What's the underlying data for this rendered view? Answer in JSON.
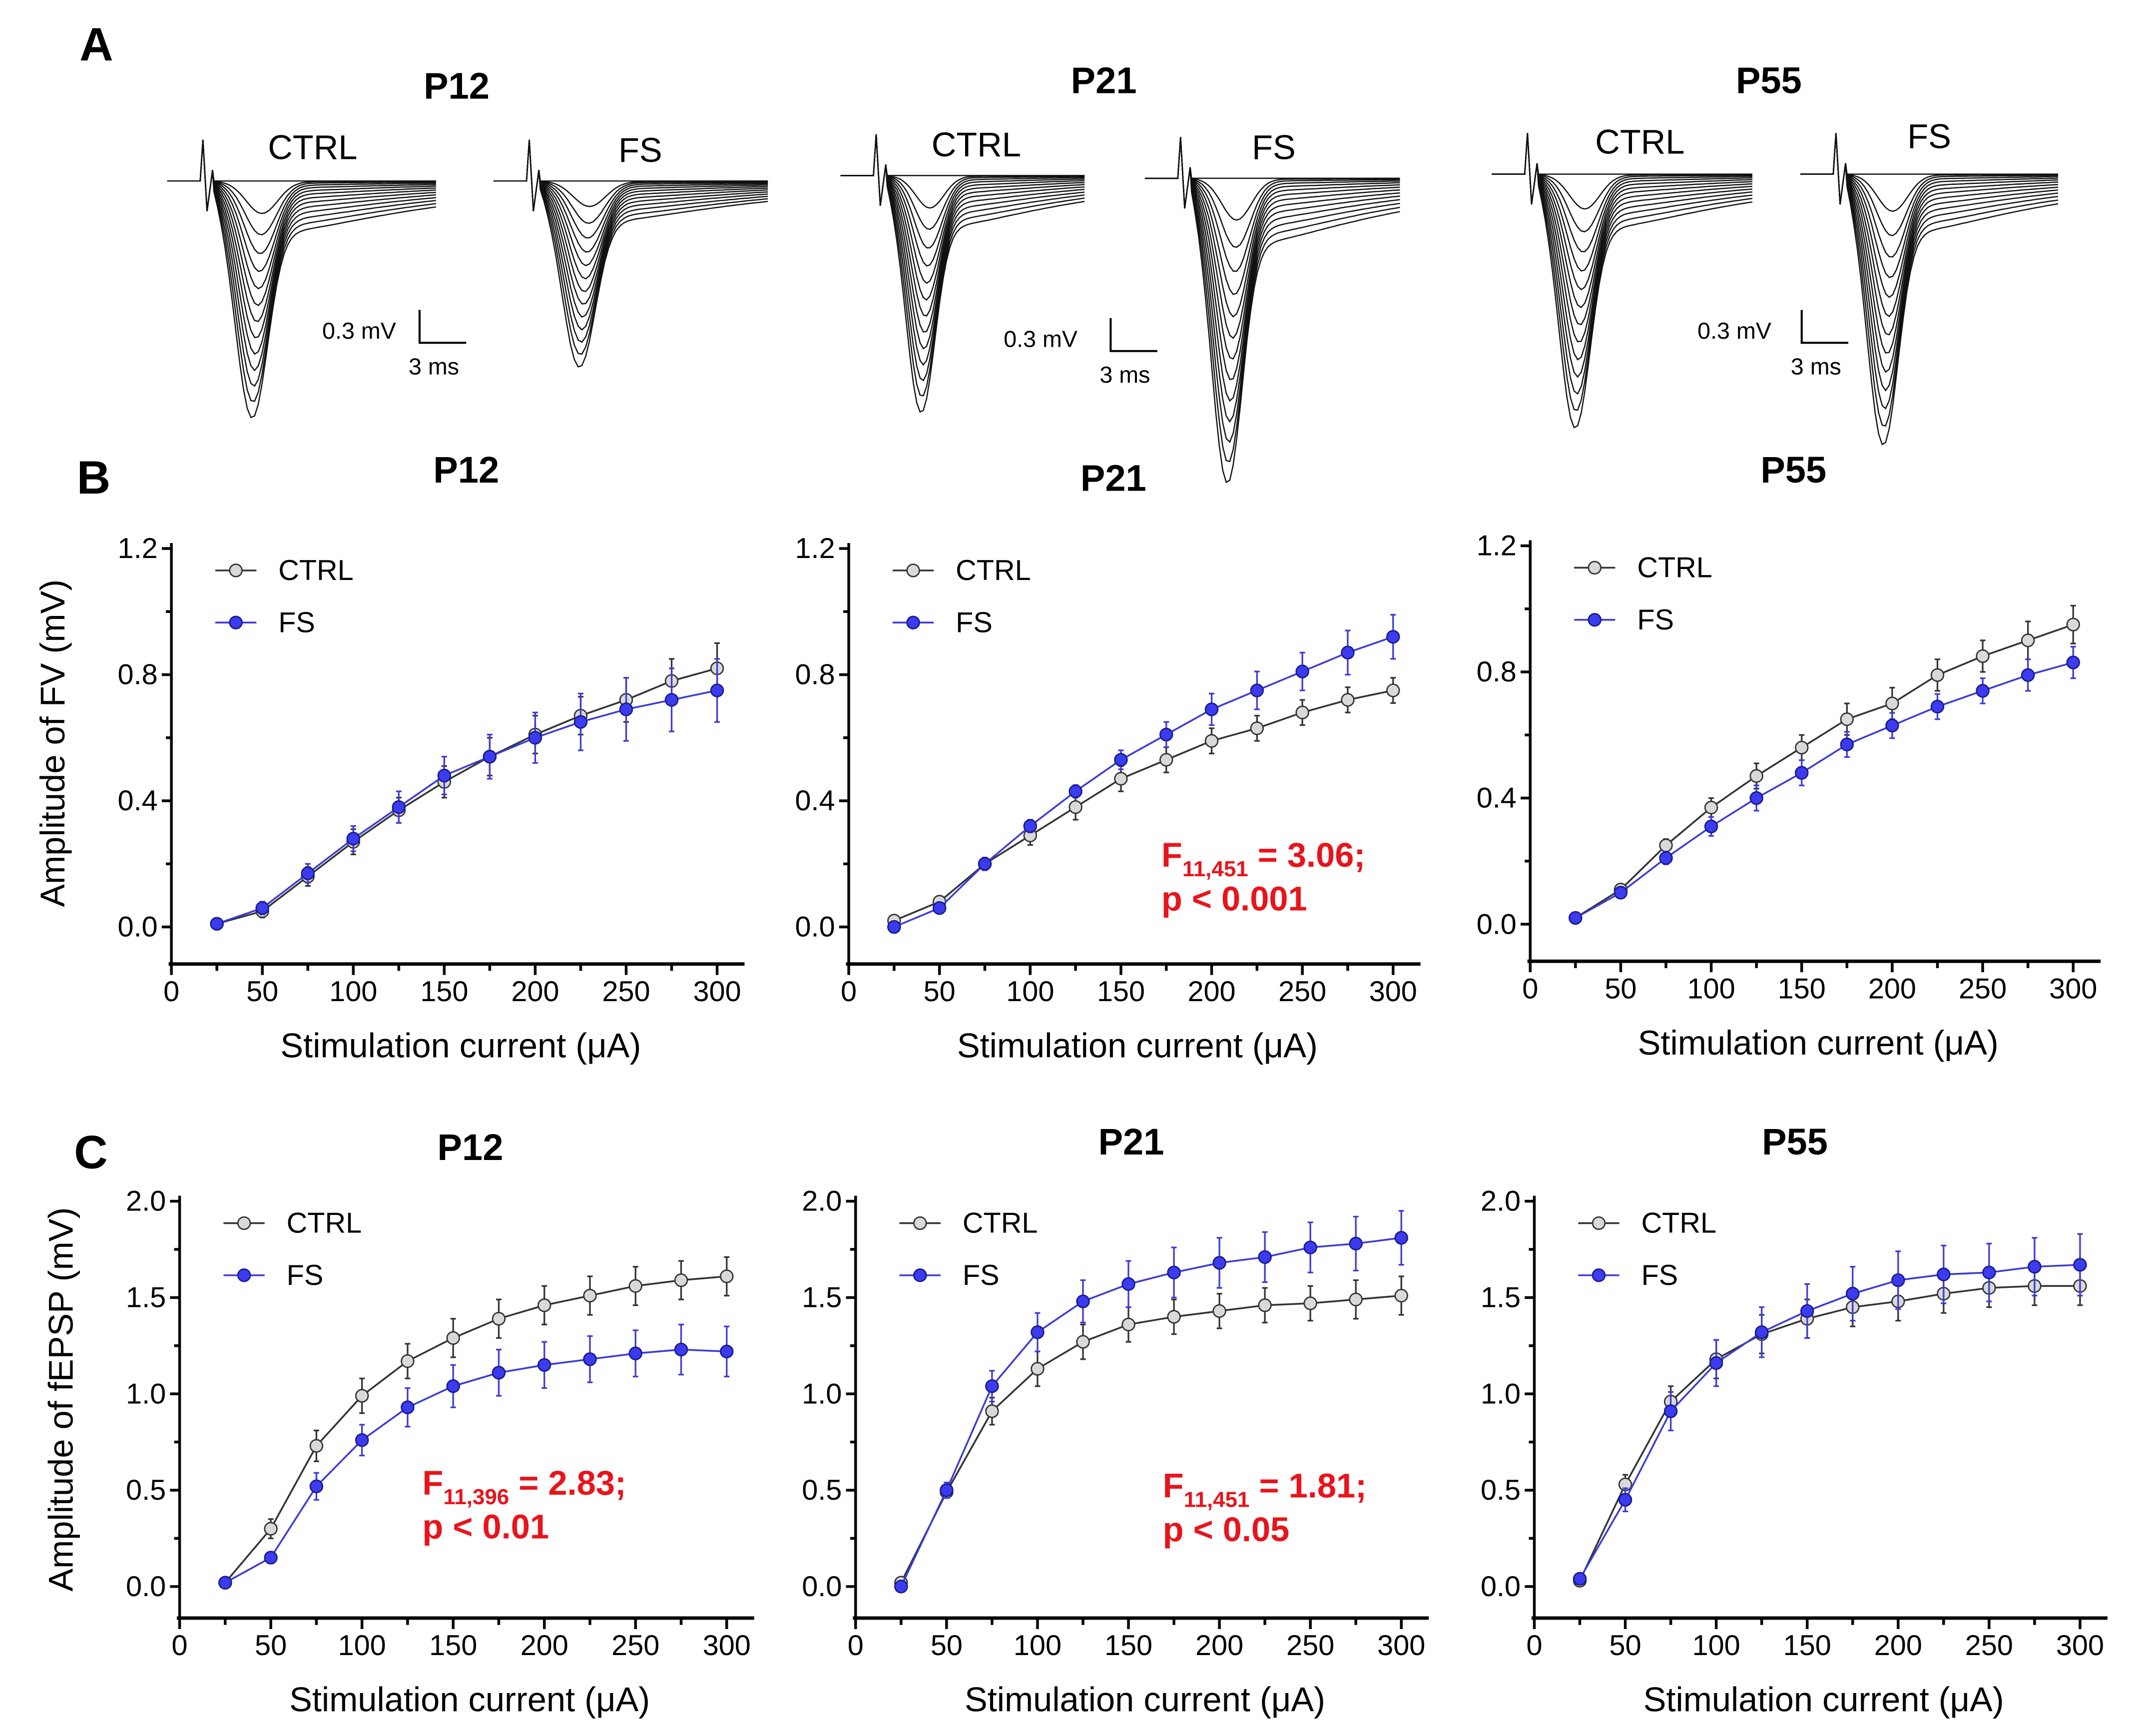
{
  "panel_letters": {
    "a": "A",
    "b": "B",
    "c": "C"
  },
  "traces": {
    "groups": [
      {
        "title": "P12",
        "ctrl_label": "CTRL",
        "fs_label": "FS",
        "scale_v": "0.3 mV",
        "scale_t": "3 ms"
      },
      {
        "title": "P21",
        "ctrl_label": "CTRL",
        "fs_label": "FS",
        "scale_v": "0.3 mV",
        "scale_t": "3 ms"
      },
      {
        "title": "P55",
        "ctrl_label": "CTRL",
        "fs_label": "FS",
        "scale_v": "0.3 mV",
        "scale_t": "3 ms"
      }
    ]
  },
  "colors": {
    "ctrl_marker": "#d9d9d9",
    "fs_marker": "#3b3bf0",
    "fs_line": "#3b3bd6",
    "ctrl_line": "#333333",
    "stat_text": "#e8141c"
  },
  "chart_data": [
    {
      "type": "line",
      "panel": "B",
      "title": "P12",
      "xlabel": "Stimulation current (μA)",
      "ylabel": "Amplitude of FV (mV)",
      "xlim": [
        0,
        300
      ],
      "ylim": [
        0,
        1.2
      ],
      "xticks": [
        "0",
        "50",
        "100",
        "150",
        "200",
        "250",
        "300"
      ],
      "yticks": [
        "0.0",
        "0.4",
        "0.8",
        "1.2"
      ],
      "x": [
        25,
        50,
        75,
        100,
        125,
        150,
        175,
        200,
        225,
        250,
        275,
        300
      ],
      "legend": "top-left",
      "grid": false,
      "series": [
        {
          "name": "CTRL",
          "values": [
            0.01,
            0.05,
            0.16,
            0.27,
            0.37,
            0.46,
            0.54,
            0.61,
            0.67,
            0.72,
            0.78,
            0.82
          ],
          "errors": [
            0.01,
            0.02,
            0.03,
            0.04,
            0.04,
            0.05,
            0.06,
            0.06,
            0.06,
            0.07,
            0.07,
            0.08
          ]
        },
        {
          "name": "FS",
          "values": [
            0.01,
            0.06,
            0.17,
            0.28,
            0.38,
            0.48,
            0.54,
            0.6,
            0.65,
            0.69,
            0.72,
            0.75
          ],
          "errors": [
            0.01,
            0.02,
            0.03,
            0.04,
            0.05,
            0.06,
            0.07,
            0.08,
            0.09,
            0.1,
            0.1,
            0.1
          ]
        }
      ],
      "annotation": null
    },
    {
      "type": "line",
      "panel": "B",
      "title": "P21",
      "xlabel": "Stimulation current (μA)",
      "ylabel": "",
      "xlim": [
        0,
        300
      ],
      "ylim": [
        0,
        1.2
      ],
      "xticks": [
        "0",
        "50",
        "100",
        "150",
        "200",
        "250",
        "300"
      ],
      "yticks": [
        "0.0",
        "0.4",
        "0.8",
        "1.2"
      ],
      "x": [
        25,
        50,
        75,
        100,
        125,
        150,
        175,
        200,
        225,
        250,
        275,
        300
      ],
      "legend": "top-left",
      "grid": false,
      "series": [
        {
          "name": "CTRL",
          "values": [
            0.02,
            0.08,
            0.2,
            0.29,
            0.38,
            0.47,
            0.53,
            0.59,
            0.63,
            0.68,
            0.72,
            0.75
          ],
          "errors": [
            0.01,
            0.01,
            0.02,
            0.03,
            0.04,
            0.04,
            0.04,
            0.04,
            0.04,
            0.04,
            0.04,
            0.04
          ]
        },
        {
          "name": "FS",
          "values": [
            0.0,
            0.06,
            0.2,
            0.32,
            0.43,
            0.53,
            0.61,
            0.69,
            0.75,
            0.81,
            0.87,
            0.92
          ],
          "errors": [
            0.01,
            0.01,
            0.02,
            0.02,
            0.02,
            0.03,
            0.04,
            0.05,
            0.06,
            0.06,
            0.07,
            0.07
          ]
        }
      ],
      "annotation": {
        "f": "F",
        "sub": "11,451",
        "rest": " = 3.06;",
        "p": "p < 0.001"
      }
    },
    {
      "type": "line",
      "panel": "B",
      "title": "P55",
      "xlabel": "Stimulation current (μA)",
      "ylabel": "",
      "xlim": [
        0,
        300
      ],
      "ylim": [
        0,
        1.2
      ],
      "xticks": [
        "0",
        "50",
        "100",
        "150",
        "200",
        "250",
        "300"
      ],
      "yticks": [
        "0.0",
        "0.4",
        "0.8",
        "1.2"
      ],
      "x": [
        25,
        50,
        75,
        100,
        125,
        150,
        175,
        200,
        225,
        250,
        275,
        300
      ],
      "legend": "top-left",
      "grid": false,
      "series": [
        {
          "name": "CTRL",
          "values": [
            0.02,
            0.11,
            0.25,
            0.37,
            0.47,
            0.56,
            0.65,
            0.7,
            0.79,
            0.85,
            0.9,
            0.95
          ],
          "errors": [
            0.01,
            0.01,
            0.02,
            0.03,
            0.04,
            0.04,
            0.05,
            0.05,
            0.05,
            0.05,
            0.06,
            0.06
          ]
        },
        {
          "name": "FS",
          "values": [
            0.02,
            0.1,
            0.21,
            0.31,
            0.4,
            0.48,
            0.57,
            0.63,
            0.69,
            0.74,
            0.79,
            0.83
          ],
          "errors": [
            0.01,
            0.01,
            0.02,
            0.03,
            0.04,
            0.04,
            0.04,
            0.04,
            0.04,
            0.04,
            0.05,
            0.05
          ]
        }
      ],
      "annotation": null
    },
    {
      "type": "line",
      "panel": "C",
      "title": "P12",
      "xlabel": "Stimulation current (μA)",
      "ylabel": "Amplitude of fEPSP (mV)",
      "xlim": [
        0,
        300
      ],
      "ylim": [
        0,
        2.0
      ],
      "xticks": [
        "0",
        "50",
        "100",
        "150",
        "200",
        "250",
        "300"
      ],
      "yticks": [
        "0.0",
        "0.5",
        "1.0",
        "1.5",
        "2.0"
      ],
      "x": [
        25,
        50,
        75,
        100,
        125,
        150,
        175,
        200,
        225,
        250,
        275,
        300
      ],
      "legend": "top-left",
      "grid": false,
      "series": [
        {
          "name": "CTRL",
          "values": [
            0.02,
            0.3,
            0.73,
            0.99,
            1.17,
            1.29,
            1.39,
            1.46,
            1.51,
            1.56,
            1.59,
            1.61
          ],
          "errors": [
            0.01,
            0.05,
            0.08,
            0.09,
            0.09,
            0.1,
            0.1,
            0.1,
            0.1,
            0.1,
            0.1,
            0.1
          ]
        },
        {
          "name": "FS",
          "values": [
            0.02,
            0.15,
            0.52,
            0.76,
            0.93,
            1.04,
            1.11,
            1.15,
            1.18,
            1.21,
            1.23,
            1.22
          ],
          "errors": [
            0.01,
            0.03,
            0.07,
            0.08,
            0.1,
            0.11,
            0.12,
            0.12,
            0.12,
            0.12,
            0.13,
            0.13
          ]
        }
      ],
      "annotation": {
        "f": "F",
        "sub": "11,396",
        "rest": " = 2.83;",
        "p": "p < 0.01"
      }
    },
    {
      "type": "line",
      "panel": "C",
      "title": "P21",
      "xlabel": "Stimulation current (μA)",
      "ylabel": "",
      "xlim": [
        0,
        300
      ],
      "ylim": [
        0,
        2.0
      ],
      "xticks": [
        "0",
        "50",
        "100",
        "150",
        "200",
        "250",
        "300"
      ],
      "yticks": [
        "0.0",
        "0.5",
        "1.0",
        "1.5",
        "2.0"
      ],
      "x": [
        25,
        50,
        75,
        100,
        125,
        150,
        175,
        200,
        225,
        250,
        275,
        300
      ],
      "legend": "top-left",
      "grid": false,
      "series": [
        {
          "name": "CTRL",
          "values": [
            0.02,
            0.49,
            0.91,
            1.13,
            1.27,
            1.36,
            1.4,
            1.43,
            1.46,
            1.47,
            1.49,
            1.51
          ],
          "errors": [
            0.01,
            0.03,
            0.07,
            0.09,
            0.09,
            0.09,
            0.09,
            0.09,
            0.09,
            0.09,
            0.1,
            0.1
          ]
        },
        {
          "name": "FS",
          "values": [
            0.0,
            0.5,
            1.04,
            1.32,
            1.48,
            1.57,
            1.63,
            1.68,
            1.71,
            1.76,
            1.78,
            1.81
          ],
          "errors": [
            0.01,
            0.04,
            0.08,
            0.1,
            0.11,
            0.12,
            0.13,
            0.13,
            0.13,
            0.13,
            0.14,
            0.14
          ]
        }
      ],
      "annotation": {
        "f": "F",
        "sub": "11,451",
        "rest": " = 1.81;",
        "p": "p < 0.05"
      }
    },
    {
      "type": "line",
      "panel": "C",
      "title": "P55",
      "xlabel": "Stimulation current (μA)",
      "ylabel": "",
      "xlim": [
        0,
        300
      ],
      "ylim": [
        0,
        2.0
      ],
      "xticks": [
        "0",
        "50",
        "100",
        "150",
        "200",
        "250",
        "300"
      ],
      "yticks": [
        "0.0",
        "0.5",
        "1.0",
        "1.5",
        "2.0"
      ],
      "x": [
        25,
        50,
        75,
        100,
        125,
        150,
        175,
        200,
        225,
        250,
        275,
        300
      ],
      "legend": "top-left",
      "grid": false,
      "series": [
        {
          "name": "CTRL",
          "values": [
            0.03,
            0.53,
            0.96,
            1.18,
            1.31,
            1.39,
            1.45,
            1.48,
            1.52,
            1.55,
            1.56,
            1.56
          ],
          "errors": [
            0.01,
            0.05,
            0.08,
            0.1,
            0.1,
            0.1,
            0.1,
            0.1,
            0.1,
            0.1,
            0.1,
            0.1
          ]
        },
        {
          "name": "FS",
          "values": [
            0.04,
            0.45,
            0.91,
            1.16,
            1.32,
            1.43,
            1.52,
            1.59,
            1.62,
            1.63,
            1.66,
            1.67
          ],
          "errors": [
            0.01,
            0.06,
            0.1,
            0.12,
            0.13,
            0.14,
            0.14,
            0.15,
            0.15,
            0.15,
            0.15,
            0.16
          ]
        }
      ],
      "annotation": null
    }
  ]
}
